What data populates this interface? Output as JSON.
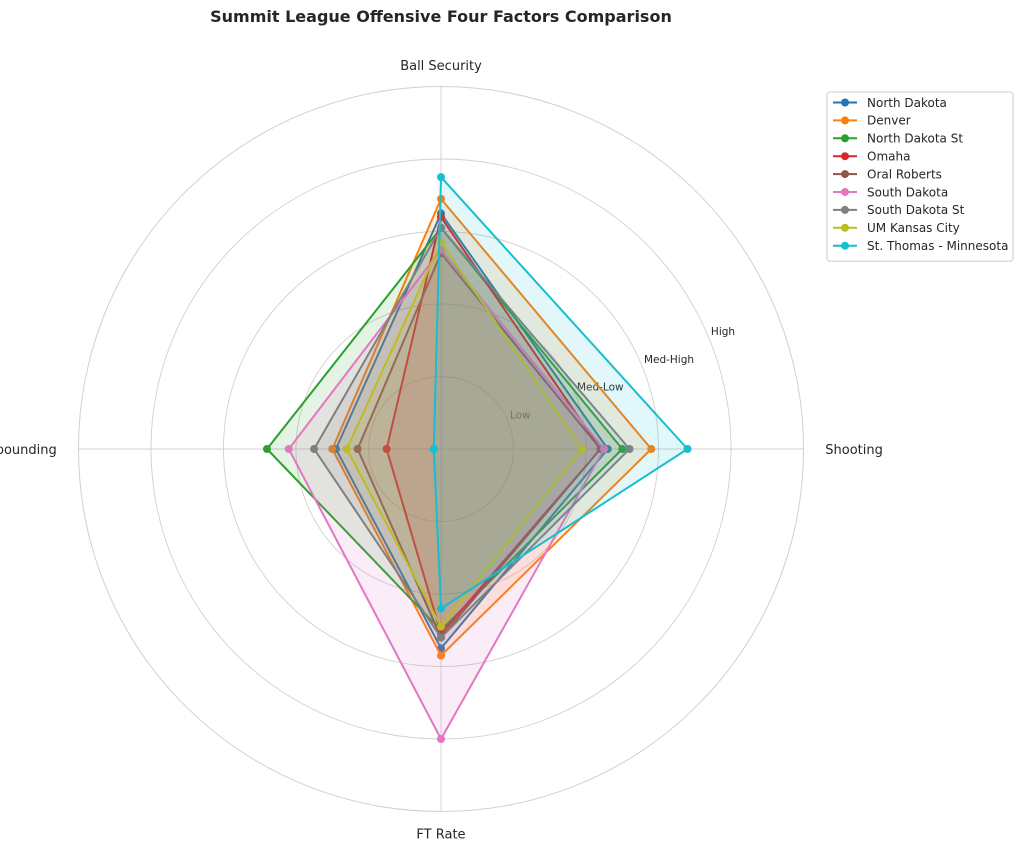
{
  "chart_data": {
    "type": "radar",
    "title": "Summit League Offensive Four Factors Comparison",
    "axes": [
      "Ball Security",
      "Shooting",
      "FT Rate",
      "Off Rebounding"
    ],
    "ring_labels": [
      "Low",
      "Med-Low",
      "Med-High",
      "High"
    ],
    "rlim": [
      0,
      5
    ],
    "grid": true,
    "legend_position": "top-right",
    "series": [
      {
        "name": "North Dakota",
        "color": "#1f77b4",
        "values": [
          3.25,
          2.3,
          2.75,
          1.45
        ]
      },
      {
        "name": "Denver",
        "color": "#ff7f0e",
        "values": [
          3.45,
          2.9,
          2.85,
          1.5
        ]
      },
      {
        "name": "North Dakota St",
        "color": "#2ca02c",
        "values": [
          3.05,
          2.5,
          2.5,
          2.4
        ]
      },
      {
        "name": "Omaha",
        "color": "#d62728",
        "values": [
          3.2,
          2.2,
          2.55,
          0.75
        ]
      },
      {
        "name": "Oral Roberts",
        "color": "#8c564b",
        "values": [
          2.7,
          2.2,
          2.6,
          1.15
        ]
      },
      {
        "name": "South Dakota",
        "color": "#e377c2",
        "values": [
          2.75,
          2.25,
          4.0,
          2.1
        ]
      },
      {
        "name": "South Dakota St",
        "color": "#7f7f7f",
        "values": [
          3.05,
          2.6,
          2.6,
          1.75
        ]
      },
      {
        "name": "UM Kansas City",
        "color": "#bcbd22",
        "values": [
          2.85,
          1.95,
          2.45,
          1.3
        ]
      },
      {
        "name": "St. Thomas - Minnesota",
        "color": "#17becf",
        "values": [
          3.75,
          3.4,
          2.2,
          0.1
        ]
      }
    ]
  }
}
